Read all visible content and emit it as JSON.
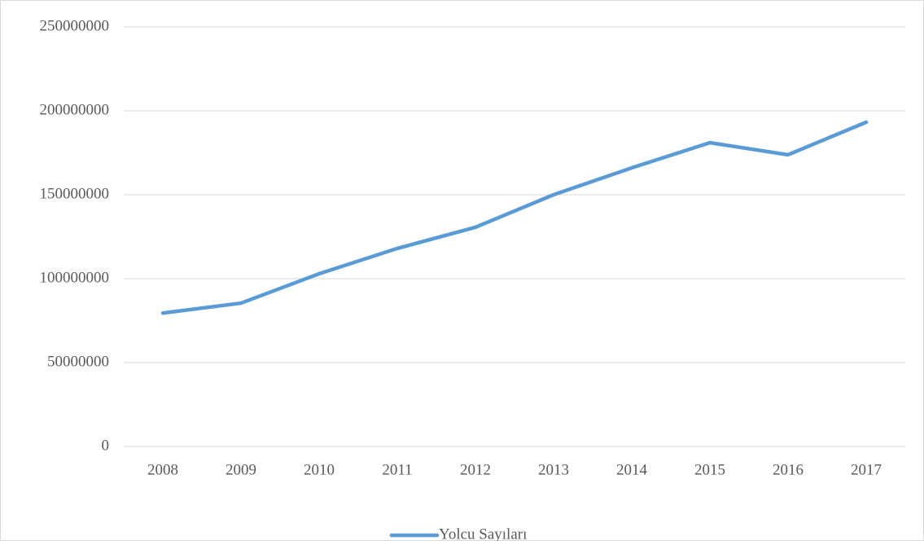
{
  "chart_data": {
    "type": "line",
    "categories": [
      "2008",
      "2009",
      "2010",
      "2011",
      "2012",
      "2013",
      "2014",
      "2015",
      "2016",
      "2017"
    ],
    "series": [
      {
        "name": "Yolcu Sayıları",
        "color": "#5b9bd5",
        "values": [
          79500000,
          85400000,
          102900000,
          118000000,
          130600000,
          150000000,
          166000000,
          181000000,
          173800000,
          193200000
        ]
      }
    ],
    "ylim": [
      0,
      250000000
    ],
    "yticks": [
      0,
      50000000,
      100000000,
      150000000,
      200000000,
      250000000
    ],
    "grid": true,
    "legend": "bottom"
  }
}
